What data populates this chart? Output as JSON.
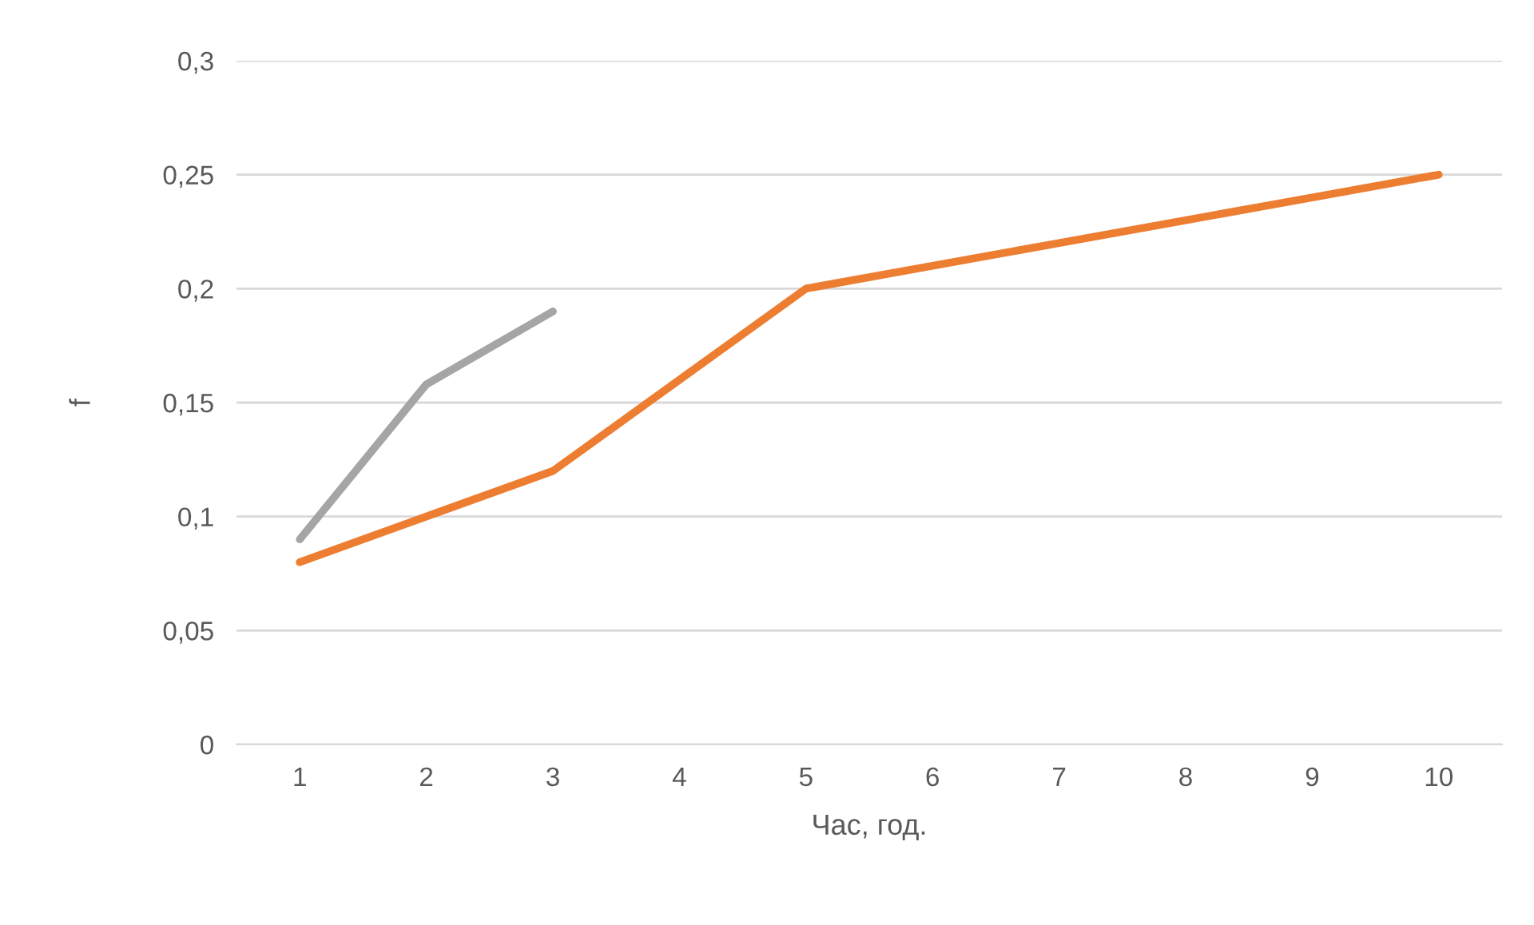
{
  "chart_data": {
    "type": "line",
    "xlabel": "Час, год.",
    "ylabel": "f",
    "categories": [
      "1",
      "2",
      "3",
      "4",
      "5",
      "6",
      "7",
      "8",
      "9",
      "10"
    ],
    "series": [
      {
        "color": "#a5a5a5",
        "values": [
          0.09,
          0.158,
          0.19,
          null,
          null,
          null,
          null,
          null,
          null,
          null
        ]
      },
      {
        "color": "#ed7d31",
        "values": [
          0.08,
          0.1,
          0.12,
          0.16,
          0.2,
          0.21,
          0.22,
          0.23,
          0.24,
          0.25
        ]
      }
    ],
    "ylim": [
      0,
      0.3
    ],
    "yticks": [
      0,
      {
        "value": 0.05,
        "label": "0,05"
      },
      {
        "value": 0.1,
        "label": "0,1"
      },
      {
        "value": 0.15,
        "label": "0,15"
      },
      {
        "value": 0.2,
        "label": "0,2"
      },
      {
        "value": 0.25,
        "label": "0,25"
      },
      {
        "value": 0.3,
        "label": "0,3"
      }
    ],
    "grid": "y",
    "legend": false,
    "marker": "none",
    "line_style": "solid"
  }
}
